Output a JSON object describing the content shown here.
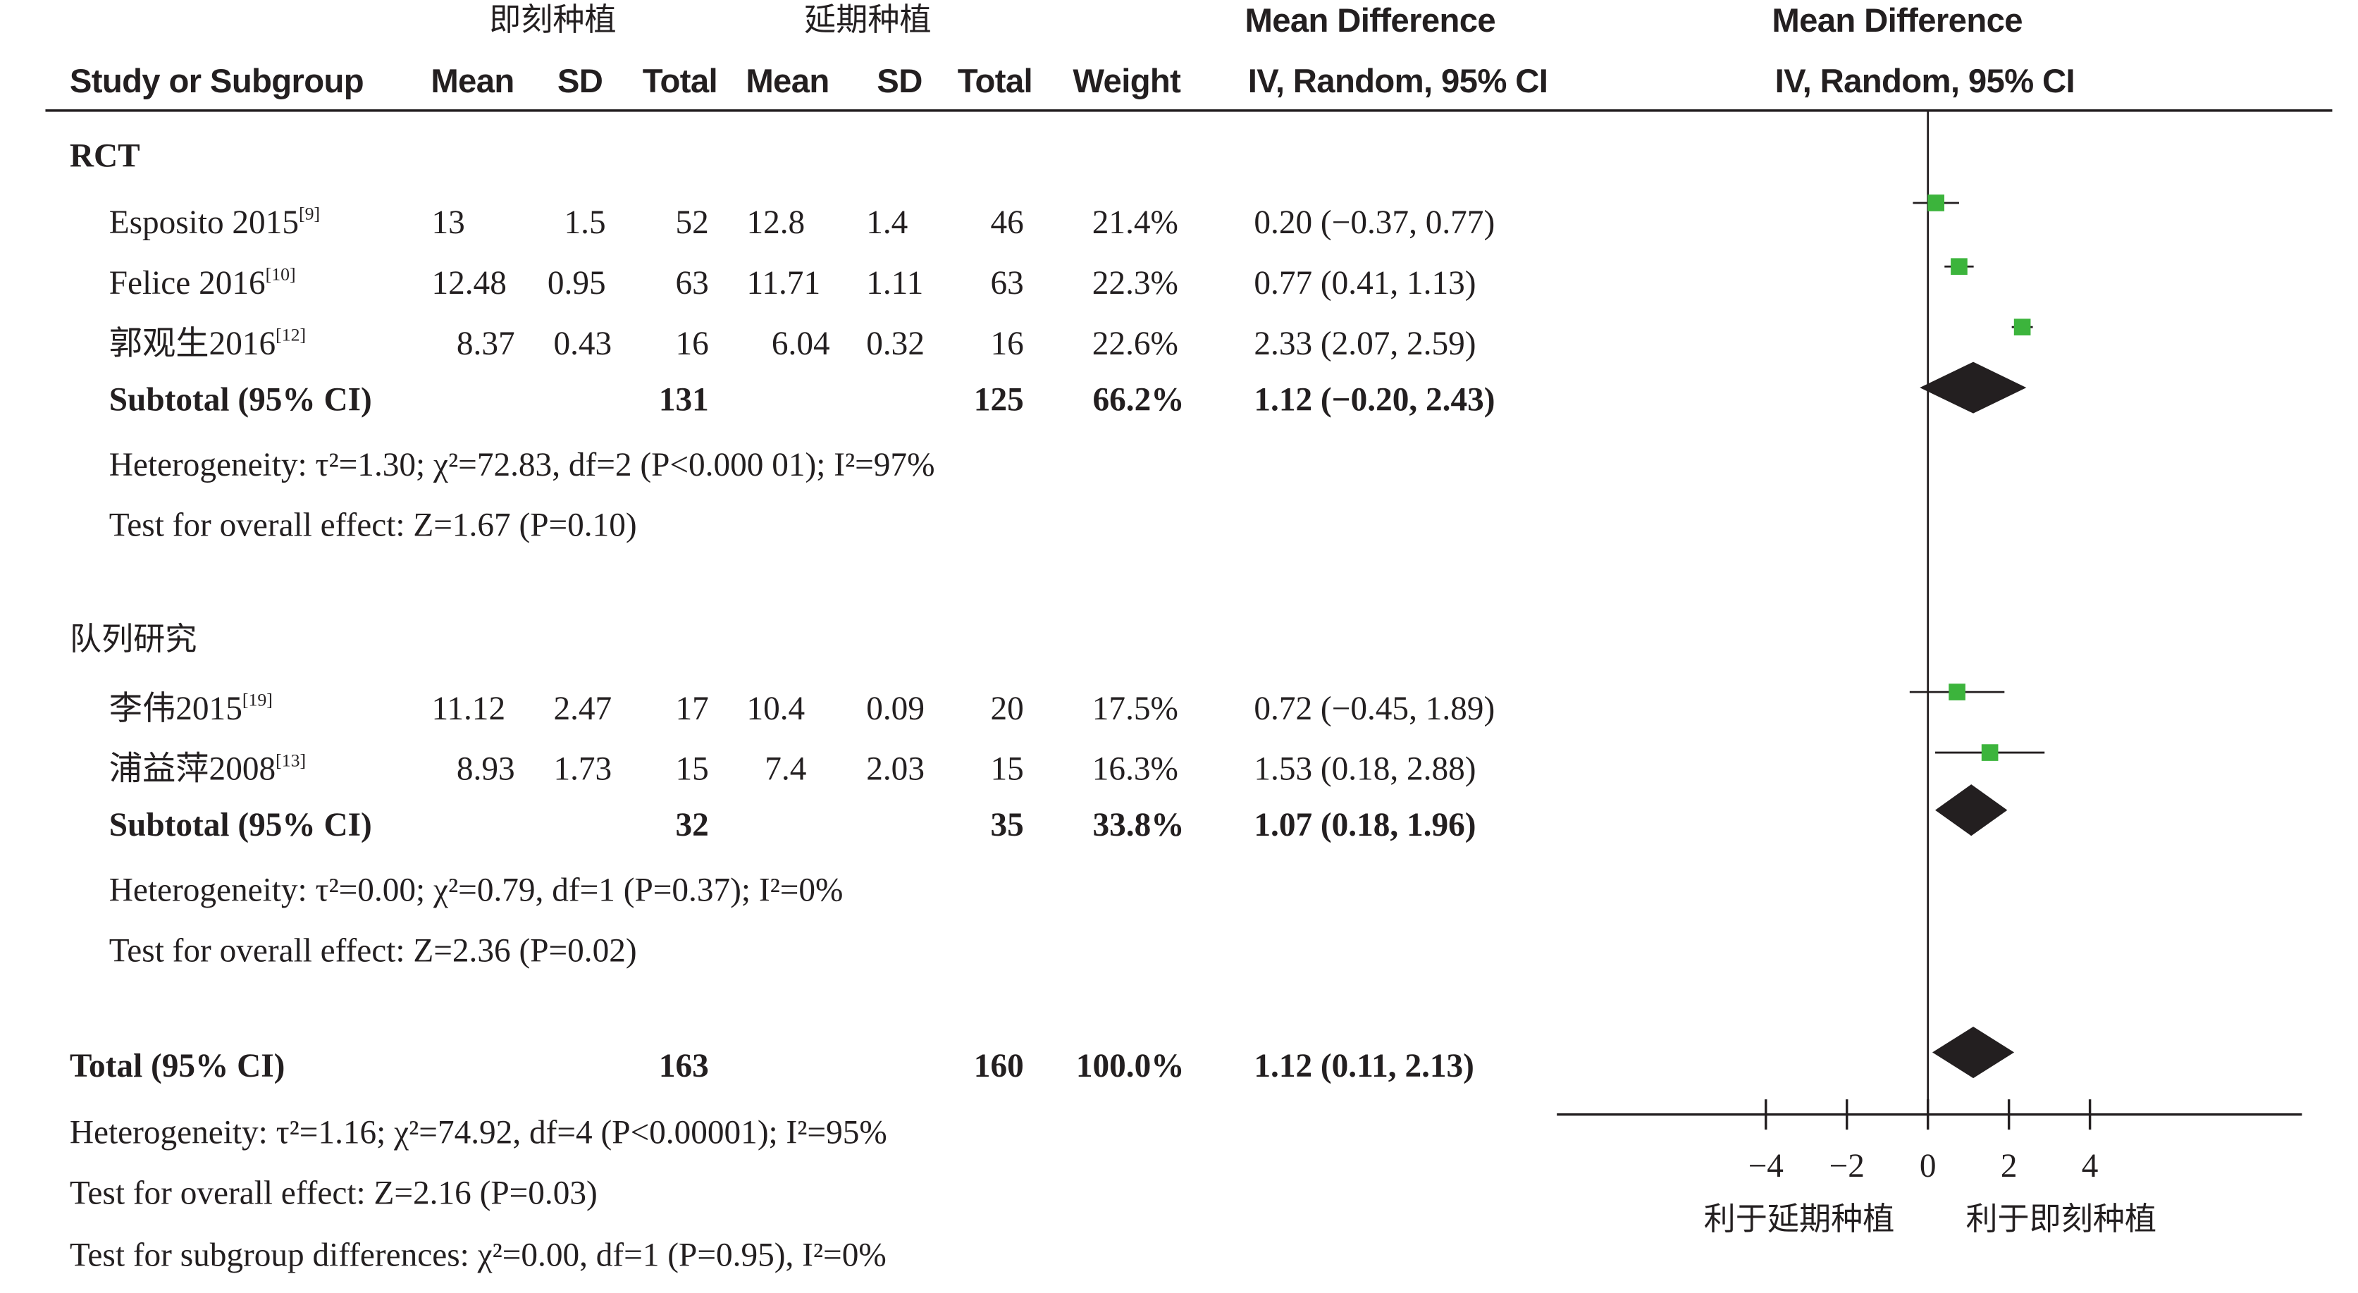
{
  "headers": {
    "group_exp": "即刻种植",
    "group_ctl": "延期种植",
    "md_text": "Mean Difference",
    "md_text_method": "IV, Random, 95% CI",
    "md_plot": "Mean Difference",
    "md_plot_method": "IV, Random, 95% CI",
    "study": "Study or Subgroup",
    "mean_exp": "Mean",
    "sd_exp": "SD",
    "total_exp": "Total",
    "mean_ctl": "Mean",
    "sd_ctl": "SD",
    "total_ctl": "Total",
    "weight": "Weight"
  },
  "groups": [
    {
      "name": "RCT",
      "studies": [
        {
          "name": "Esposito 2015",
          "ref": "[9]",
          "mean_exp": "13",
          "sd_exp": "1.5",
          "total_exp": "52",
          "mean_ctl": "12.8",
          "sd_ctl": "1.4",
          "total_ctl": "46",
          "weight": "21.4%",
          "ci": "0.20 (−0.37, 0.77)"
        },
        {
          "name": "Felice 2016",
          "ref": "[10]",
          "mean_exp": "12.48",
          "sd_exp": "0.95",
          "total_exp": "63",
          "mean_ctl": "11.71",
          "sd_ctl": "1.11",
          "total_ctl": "63",
          "weight": "22.3%",
          "ci": "0.77 (0.41, 1.13)"
        },
        {
          "name": "郭观生2016",
          "ref": "[12]",
          "mean_exp": "8.37",
          "sd_exp": "0.43",
          "total_exp": "16",
          "mean_ctl": "6.04",
          "sd_ctl": "0.32",
          "total_ctl": "16",
          "weight": "22.6%",
          "ci": "2.33 (2.07, 2.59)"
        }
      ],
      "subtotal": {
        "label": "Subtotal (95% CI)",
        "total_exp": "131",
        "total_ctl": "125",
        "weight": "66.2%",
        "ci": "1.12 (−0.20, 2.43)"
      },
      "heterogeneity": "Heterogeneity: τ²=1.30; χ²=72.83, df=2 (P<0.000 01); I²=97%",
      "overall": "Test for overall effect: Z=1.67 (P=0.10)"
    },
    {
      "name": "队列研究",
      "studies": [
        {
          "name": "李伟2015",
          "ref": "[19]",
          "mean_exp": "11.12",
          "sd_exp": "2.47",
          "total_exp": "17",
          "mean_ctl": "10.4",
          "sd_ctl": "0.09",
          "total_ctl": "20",
          "weight": "17.5%",
          "ci": "0.72 (−0.45, 1.89)"
        },
        {
          "name": "浦益萍2008",
          "ref": "[13]",
          "mean_exp": "8.93",
          "sd_exp": "1.73",
          "total_exp": "15",
          "mean_ctl": "7.4",
          "sd_ctl": "2.03",
          "total_ctl": "15",
          "weight": "16.3%",
          "ci": "1.53 (0.18, 2.88)"
        }
      ],
      "subtotal": {
        "label": "Subtotal (95% CI)",
        "total_exp": "32",
        "total_ctl": "35",
        "weight": "33.8%",
        "ci": "1.07 (0.18, 1.96)"
      },
      "heterogeneity": "Heterogeneity: τ²=0.00; χ²=0.79, df=1 (P=0.37); I²=0%",
      "overall": "Test for overall effect: Z=2.36 (P=0.02)"
    }
  ],
  "total": {
    "label": "Total (95% CI)",
    "total_exp": "163",
    "total_ctl": "160",
    "weight": "100.0%",
    "ci": "1.12 (0.11, 2.13)"
  },
  "footer": {
    "heterogeneity": "Heterogeneity: τ²=1.16; χ²=74.92, df=4 (P<0.00001); I²=95%",
    "overall": "Test for overall effect: Z=2.16 (P=0.03)",
    "subgroup": "Test for subgroup differences: χ²=0.00, df=1 (P=0.95), I²=0%"
  },
  "chart_data": {
    "type": "forest",
    "x_axis": {
      "ticks": [
        -4,
        -2,
        0,
        2,
        4
      ],
      "tick_labels": [
        "−4",
        "−2",
        "0",
        "2",
        "4"
      ],
      "range": [
        -4.6,
        4.6
      ]
    },
    "favours_left": "利于延期种植",
    "favours_right": "利于即刻种植",
    "studies": [
      {
        "name": "Esposito 2015",
        "md": 0.2,
        "lo": -0.37,
        "hi": 0.77
      },
      {
        "name": "Felice 2016",
        "md": 0.77,
        "lo": 0.41,
        "hi": 1.13
      },
      {
        "name": "郭观生2016",
        "md": 2.33,
        "lo": 2.07,
        "hi": 2.59
      },
      {
        "name": "李伟2015",
        "md": 0.72,
        "lo": -0.45,
        "hi": 1.89
      },
      {
        "name": "浦益萍2008",
        "md": 1.53,
        "lo": 0.18,
        "hi": 2.88
      }
    ],
    "pooled": [
      {
        "name": "Subtotal RCT",
        "md": 1.12,
        "lo": -0.2,
        "hi": 2.43
      },
      {
        "name": "Subtotal 队列研究",
        "md": 1.07,
        "lo": 0.18,
        "hi": 1.96
      },
      {
        "name": "Total",
        "md": 1.12,
        "lo": 0.11,
        "hi": 2.13
      }
    ],
    "colors": {
      "square": "#3cb43c",
      "diamond": "#231f20",
      "line": "#231f20"
    }
  }
}
